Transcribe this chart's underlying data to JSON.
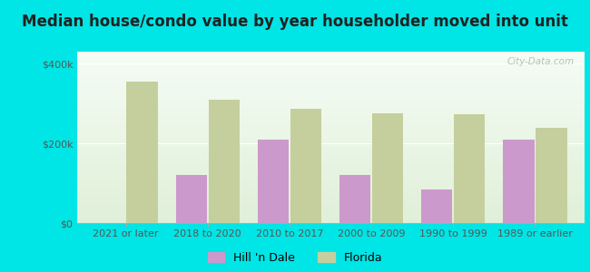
{
  "title": "Median house/condo value by year householder moved into unit",
  "categories": [
    "2021 or later",
    "2018 to 2020",
    "2010 to 2017",
    "2000 to 2009",
    "1990 to 1999",
    "1989 or earlier"
  ],
  "hill_n_dale": [
    null,
    120000,
    210000,
    120000,
    85000,
    210000
  ],
  "florida": [
    355000,
    310000,
    287000,
    275000,
    272000,
    240000
  ],
  "hill_color": "#cc99cc",
  "florida_color": "#c5cf9e",
  "background_outer": "#00e5e5",
  "yticks": [
    0,
    200000,
    400000
  ],
  "ytick_labels": [
    "$0",
    "$200k",
    "$400k"
  ],
  "ylim": [
    0,
    430000
  ],
  "bar_width": 0.38,
  "legend_labels": [
    "Hill 'n Dale",
    "Florida"
  ],
  "watermark": "City-Data.com",
  "title_fontsize": 12,
  "tick_fontsize": 8
}
